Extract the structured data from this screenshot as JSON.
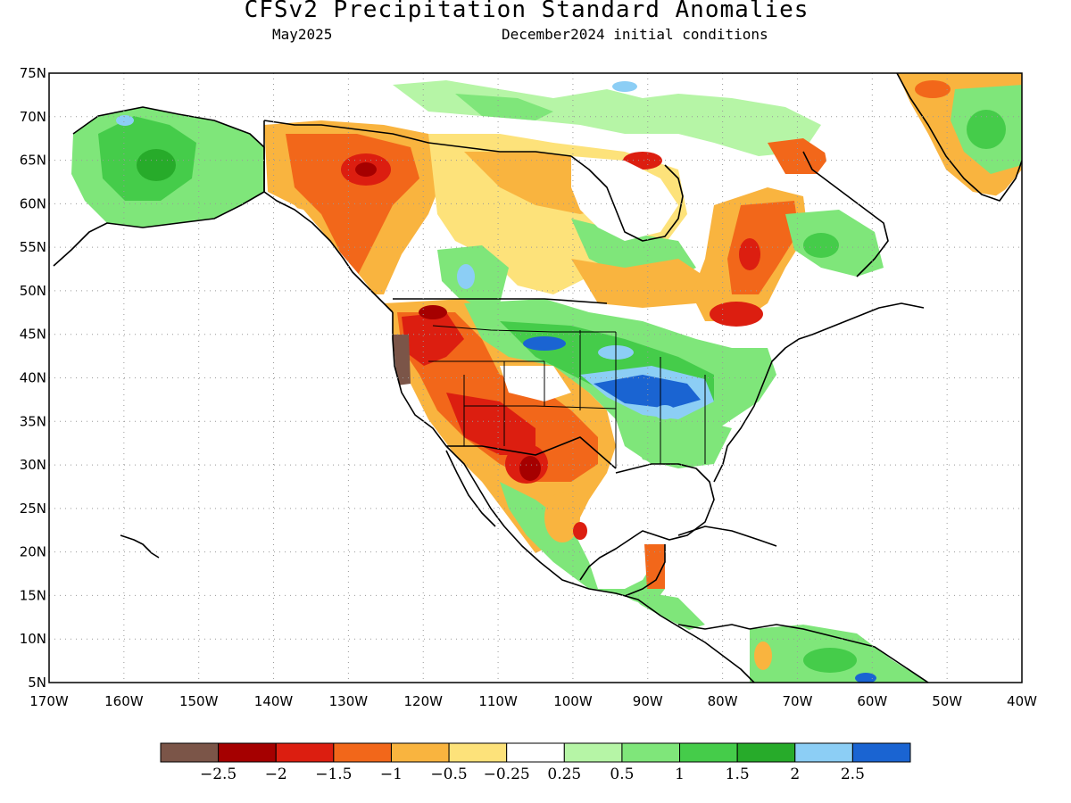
{
  "title": "CFSv2 Precipitation Standard Anomalies",
  "valid_month": "May2025",
  "initial_conditions": "December2024 initial conditions",
  "map": {
    "lat_labels": [
      "75N",
      "70N",
      "65N",
      "60N",
      "55N",
      "50N",
      "45N",
      "40N",
      "35N",
      "30N",
      "25N",
      "20N",
      "15N",
      "10N",
      "5N"
    ],
    "lon_labels": [
      "170W",
      "160W",
      "150W",
      "140W",
      "130W",
      "120W",
      "110W",
      "100W",
      "90W",
      "80W",
      "70W",
      "60W",
      "50W",
      "40W"
    ],
    "gridline_style": "dotted",
    "coastline_color": "#000000"
  },
  "colorbar": {
    "colors": [
      "#7b5548",
      "#a50000",
      "#dc1e10",
      "#f2671a",
      "#f9b43f",
      "#fde27a",
      "#ffffff",
      "#b6f5a6",
      "#7fe67a",
      "#45cc4a",
      "#27ab2a",
      "#8ccef5",
      "#1a64d2"
    ],
    "labels": [
      "−2.5",
      "−2",
      "−1.5",
      "−1",
      "−0.5",
      "−0.25",
      "0.25",
      "0.5",
      "1",
      "1.5",
      "2",
      "2.5"
    ]
  },
  "anomaly_regions": [
    {
      "region": "Pacific Northwest / Northern California coast",
      "level": "-2.5"
    },
    {
      "region": "Great Basin / Southwest US",
      "level": "-1.5"
    },
    {
      "region": "Texas / northern Mexico",
      "level": "-2"
    },
    {
      "region": "Western Canada",
      "level": "-1.5"
    },
    {
      "region": "Quebec / Labrador",
      "level": "-1.5"
    },
    {
      "region": "Southern Greenland",
      "level": "-1"
    },
    {
      "region": "Alaska",
      "level": "1"
    },
    {
      "region": "Central Plains",
      "level": "2.5"
    },
    {
      "region": "Ohio Valley / Eastern US",
      "level": "1"
    },
    {
      "region": "Hudson Bay south",
      "level": "1"
    },
    {
      "region": "Greenland east",
      "level": "1.5"
    },
    {
      "region": "Central America / northern South America",
      "level": "1"
    }
  ]
}
